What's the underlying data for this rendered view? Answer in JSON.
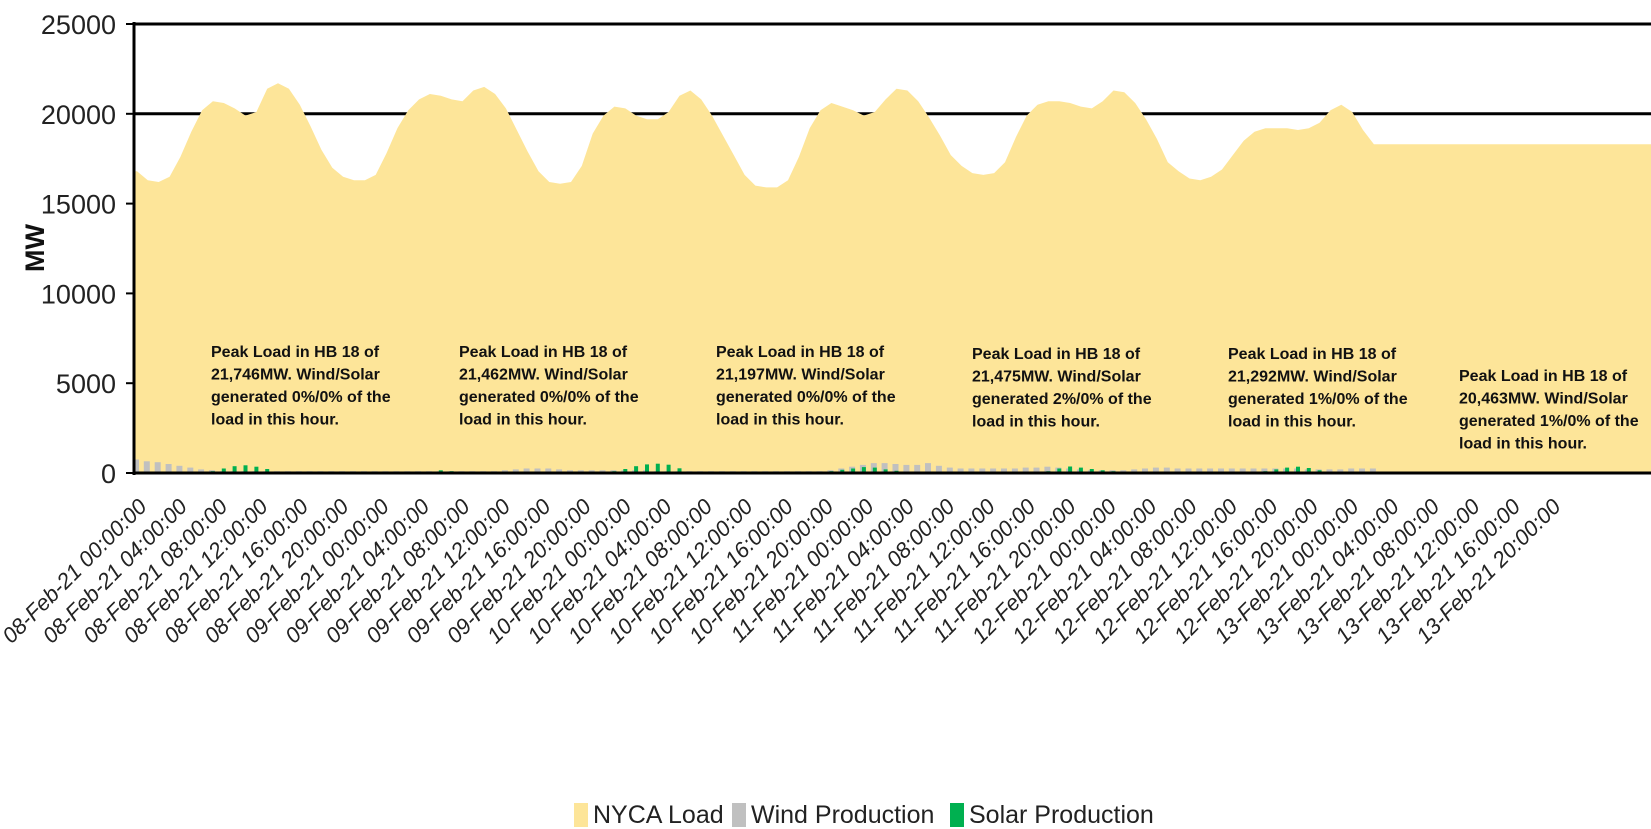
{
  "chart_data": {
    "type": "area",
    "title": "",
    "xlabel": "",
    "ylabel": "MW",
    "ylim": [
      0,
      25000
    ],
    "yticks": [
      "0",
      "5000",
      "10000",
      "15000",
      "20000",
      "25000"
    ],
    "grid": "horizontal at 20000 and 25000",
    "legend_position": "bottom-center",
    "colors": {
      "load": "#fde599",
      "wind": "#c0c0c0",
      "solar": "#00b050",
      "axis": "#000000"
    },
    "x_tick_labels": [
      "08-Feb-21 00:00:00",
      "08-Feb-21 04:00:00",
      "08-Feb-21 08:00:00",
      "08-Feb-21 12:00:00",
      "08-Feb-21 16:00:00",
      "08-Feb-21 20:00:00",
      "09-Feb-21 00:00:00",
      "09-Feb-21 04:00:00",
      "09-Feb-21 08:00:00",
      "09-Feb-21 12:00:00",
      "09-Feb-21 16:00:00",
      "09-Feb-21 20:00:00",
      "10-Feb-21 00:00:00",
      "10-Feb-21 04:00:00",
      "10-Feb-21 08:00:00",
      "10-Feb-21 12:00:00",
      "10-Feb-21 16:00:00",
      "10-Feb-21 20:00:00",
      "11-Feb-21 00:00:00",
      "11-Feb-21 04:00:00",
      "11-Feb-21 08:00:00",
      "11-Feb-21 12:00:00",
      "11-Feb-21 16:00:00",
      "11-Feb-21 20:00:00",
      "12-Feb-21 00:00:00",
      "12-Feb-21 04:00:00",
      "12-Feb-21 08:00:00",
      "12-Feb-21 12:00:00",
      "12-Feb-21 16:00:00",
      "12-Feb-21 20:00:00",
      "13-Feb-21 00:00:00",
      "13-Feb-21 04:00:00",
      "13-Feb-21 08:00:00",
      "13-Feb-21 12:00:00",
      "13-Feb-21 16:00:00",
      "13-Feb-21 20:00:00"
    ],
    "series": [
      {
        "name": "NYCA Load",
        "values": [
          16800,
          16300,
          16200,
          16500,
          17600,
          19000,
          20200,
          20700,
          20600,
          20300,
          19900,
          20100,
          21400,
          21700,
          21400,
          20500,
          19300,
          18000,
          17000,
          16500,
          16300,
          16300,
          16600,
          17800,
          19200,
          20200,
          20800,
          21100,
          21000,
          20800,
          20700,
          21300,
          21500,
          21100,
          20300,
          19100,
          17900,
          16800,
          16200,
          16100,
          16200,
          17100,
          18900,
          19900,
          20400,
          20300,
          19900,
          19700,
          19700,
          20100,
          21000,
          21300,
          20800,
          19900,
          18800,
          17700,
          16600,
          16000,
          15900,
          15900,
          16300,
          17600,
          19200,
          20200,
          20600,
          20400,
          20200,
          19900,
          20100,
          20800,
          21400,
          21300,
          20700,
          19800,
          18800,
          17700,
          17100,
          16700,
          16600,
          16700,
          17300,
          18700,
          19900,
          20500,
          20700,
          20700,
          20600,
          20400,
          20300,
          20700,
          21300,
          21200,
          20600,
          19700,
          18600,
          17300,
          16800,
          16400,
          16300,
          16500,
          16900,
          17700,
          18500,
          19000,
          19200,
          19200,
          19200,
          19100,
          19200,
          19500,
          20200,
          20500,
          20100,
          19100,
          18300
        ]
      },
      {
        "name": "Wind Production",
        "values": [
          750,
          650,
          600,
          500,
          400,
          300,
          200,
          150,
          100,
          100,
          100,
          100,
          100,
          100,
          100,
          100,
          100,
          100,
          100,
          100,
          100,
          100,
          100,
          100,
          100,
          100,
          100,
          100,
          100,
          100,
          100,
          100,
          100,
          100,
          150,
          200,
          250,
          250,
          250,
          200,
          150,
          150,
          150,
          150,
          150,
          150,
          150,
          150,
          100,
          100,
          100,
          100,
          100,
          100,
          100,
          100,
          100,
          100,
          100,
          100,
          100,
          100,
          100,
          100,
          150,
          250,
          350,
          450,
          550,
          550,
          500,
          450,
          450,
          550,
          400,
          300,
          250,
          250,
          250,
          250,
          250,
          250,
          300,
          300,
          350,
          300,
          250,
          200,
          150,
          150,
          150,
          150,
          200,
          250,
          300,
          300,
          250,
          250,
          250,
          250,
          250,
          250,
          250,
          250,
          250,
          250,
          250,
          250,
          200,
          200,
          200,
          200,
          250,
          250,
          250
        ]
      },
      {
        "name": "Solar Production",
        "values": [
          0,
          0,
          0,
          0,
          0,
          0,
          0,
          100,
          250,
          380,
          430,
          350,
          220,
          80,
          0,
          0,
          0,
          0,
          0,
          0,
          0,
          0,
          0,
          0,
          0,
          0,
          0,
          80,
          150,
          100,
          50,
          0,
          0,
          0,
          0,
          0,
          0,
          0,
          0,
          0,
          0,
          0,
          0,
          0,
          100,
          220,
          380,
          480,
          520,
          460,
          260,
          80,
          0,
          0,
          0,
          0,
          0,
          0,
          0,
          0,
          0,
          0,
          0,
          0,
          100,
          180,
          250,
          330,
          300,
          200,
          120,
          0,
          0,
          0,
          0,
          0,
          0,
          0,
          0,
          0,
          0,
          0,
          0,
          0,
          100,
          250,
          360,
          300,
          220,
          150,
          100,
          0,
          0,
          0,
          0,
          0,
          0,
          0,
          0,
          0,
          0,
          0,
          0,
          0,
          100,
          200,
          300,
          350,
          280,
          150,
          80,
          0,
          0,
          0,
          0
        ]
      }
    ],
    "annotations": [
      {
        "lines": [
          "Peak Load in HB 18 of",
          "21,746MW. Wind/Solar",
          "generated 0%/0% of the",
          "load in this hour."
        ]
      },
      {
        "lines": [
          "Peak Load in HB 18 of",
          "21,462MW. Wind/Solar",
          "generated 0%/0% of the",
          "load in this hour."
        ]
      },
      {
        "lines": [
          "Peak Load in HB 18 of",
          "21,197MW. Wind/Solar",
          "generated 0%/0% of the",
          "load in this hour."
        ]
      },
      {
        "lines": [
          "Peak Load in HB 18 of",
          "21,475MW. Wind/Solar",
          "generated 2%/0% of the",
          "load in this hour."
        ]
      },
      {
        "lines": [
          "Peak Load in HB 18 of",
          "21,292MW. Wind/Solar",
          "generated 1%/0% of the",
          "load in this hour."
        ]
      },
      {
        "lines": [
          "Peak Load in HB 18 of",
          "20,463MW. Wind/Solar",
          "generated 1%/0% of the",
          "load in this hour."
        ]
      }
    ]
  }
}
